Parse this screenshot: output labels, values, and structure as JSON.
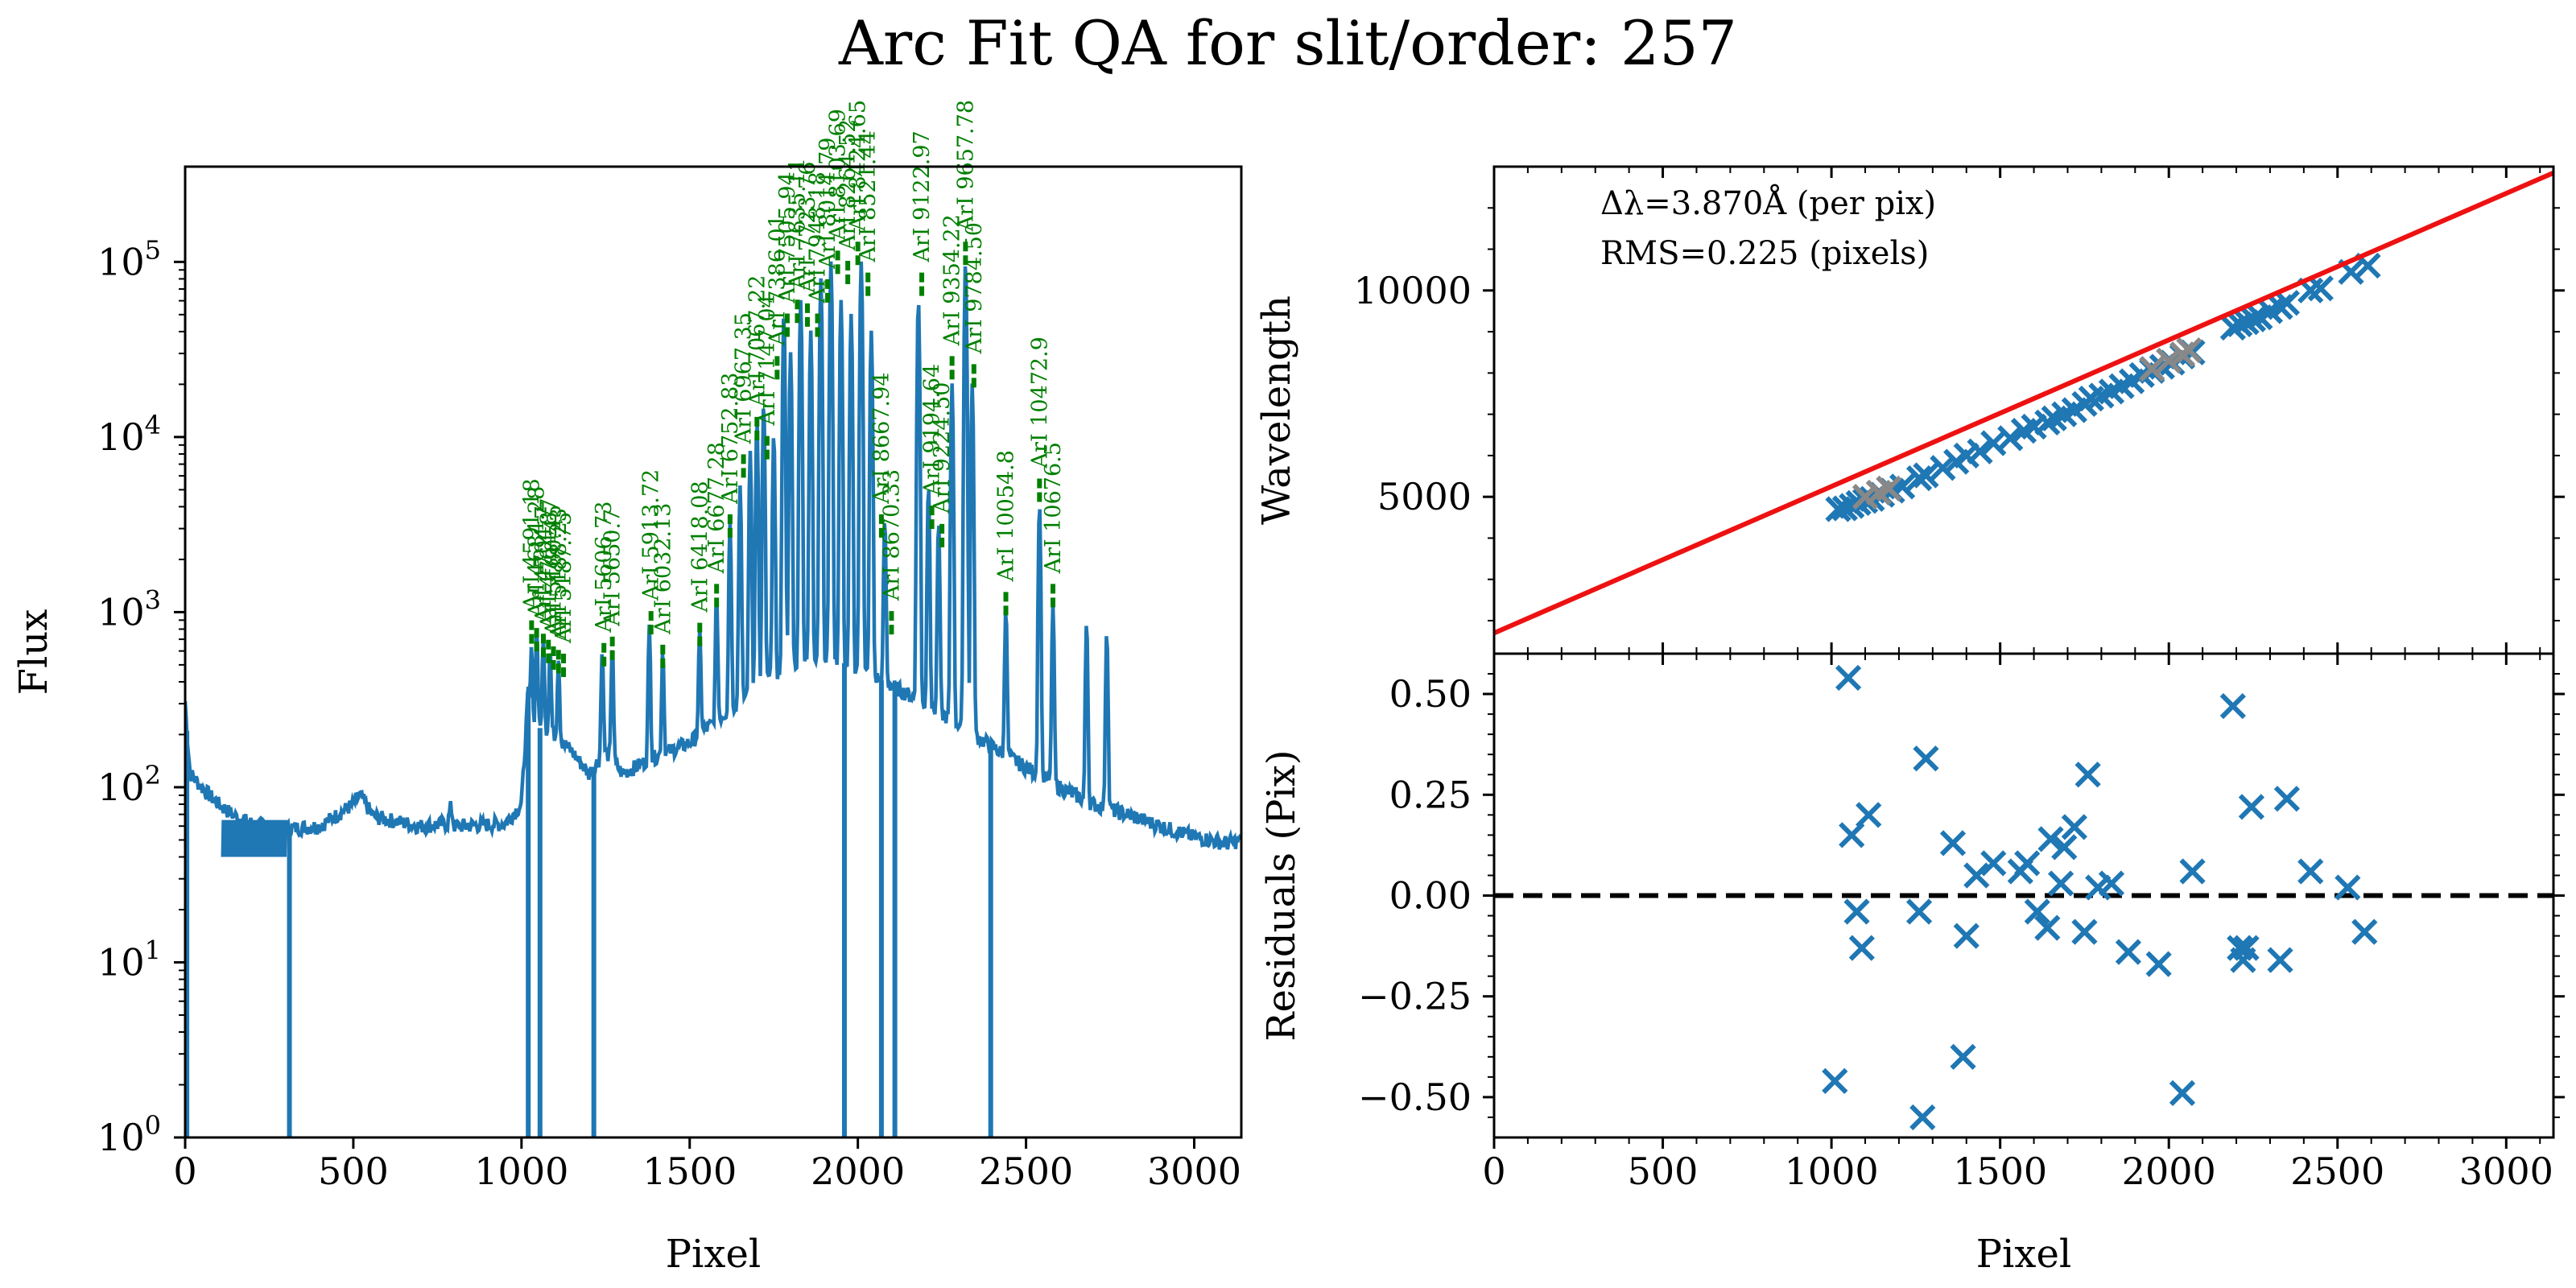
{
  "figure": {
    "title": "Arc Fit QA for slit/order: 257"
  },
  "chart_data": [
    {
      "type": "line",
      "name": "arc-spectrum",
      "xlabel": "Pixel",
      "ylabel": "Flux",
      "xlim": [
        0,
        3140
      ],
      "ylim": [
        1,
        350000
      ],
      "yscale": "log",
      "xticks": [
        0,
        500,
        1000,
        1500,
        2000,
        2500,
        3000
      ],
      "yticks": [
        {
          "value": 1,
          "mant": "10",
          "exp": "0"
        },
        {
          "value": 10,
          "mant": "10",
          "exp": "1"
        },
        {
          "value": 100,
          "mant": "10",
          "exp": "2"
        },
        {
          "value": 1000,
          "mant": "10",
          "exp": "3"
        },
        {
          "value": 10000,
          "mant": "10",
          "exp": "4"
        },
        {
          "value": 100000,
          "mant": "10",
          "exp": "5"
        }
      ],
      "series_color": "#1f77b4",
      "label_color": "#008000",
      "continuum": [
        [
          0,
          310
        ],
        [
          5,
          210
        ],
        [
          15,
          120
        ],
        [
          60,
          95
        ],
        [
          100,
          80
        ],
        [
          150,
          68
        ],
        [
          200,
          62
        ],
        [
          300,
          58
        ],
        [
          400,
          60
        ],
        [
          500,
          80
        ],
        [
          520,
          90
        ],
        [
          560,
          68
        ],
        [
          700,
          60
        ],
        [
          780,
          62
        ],
        [
          790,
          78
        ],
        [
          800,
          60
        ],
        [
          950,
          62
        ],
        [
          1000,
          80
        ],
        [
          1020,
          350
        ],
        [
          1030,
          180
        ],
        [
          1050,
          220
        ],
        [
          1100,
          200
        ],
        [
          1150,
          160
        ],
        [
          1200,
          120
        ],
        [
          1250,
          160
        ],
        [
          1300,
          120
        ],
        [
          1400,
          150
        ],
        [
          1500,
          180
        ],
        [
          1600,
          260
        ],
        [
          1700,
          380
        ],
        [
          1800,
          500
        ],
        [
          1900,
          560
        ],
        [
          2000,
          480
        ],
        [
          2100,
          380
        ],
        [
          2200,
          300
        ],
        [
          2300,
          230
        ],
        [
          2400,
          170
        ],
        [
          2500,
          130
        ],
        [
          2600,
          100
        ],
        [
          2700,
          80
        ],
        [
          2800,
          70
        ],
        [
          2900,
          60
        ],
        [
          3000,
          52
        ],
        [
          3100,
          48
        ],
        [
          3140,
          50
        ]
      ],
      "noise_band": {
        "x": [
          110,
          300
        ],
        "low": 40,
        "high": 65
      },
      "emission_peaks": [
        {
          "x": 1030,
          "peak": 450
        },
        {
          "x": 1045,
          "peak": 600
        },
        {
          "x": 1065,
          "peak": 500
        },
        {
          "x": 1085,
          "peak": 400
        },
        {
          "x": 1110,
          "peak": 350
        },
        {
          "x": 1240,
          "peak": 450
        },
        {
          "x": 1270,
          "peak": 500
        },
        {
          "x": 1380,
          "peak": 700
        },
        {
          "x": 1420,
          "peak": 450
        },
        {
          "x": 1530,
          "peak": 600
        },
        {
          "x": 1580,
          "peak": 1000
        },
        {
          "x": 1620,
          "peak": 3000
        },
        {
          "x": 1650,
          "peak": 5000
        },
        {
          "x": 1680,
          "peak": 8000
        },
        {
          "x": 1700,
          "peak": 12000
        },
        {
          "x": 1720,
          "peak": 15000
        },
        {
          "x": 1750,
          "peak": 10000
        },
        {
          "x": 1780,
          "peak": 50000
        },
        {
          "x": 1800,
          "peak": 30000
        },
        {
          "x": 1830,
          "peak": 60000
        },
        {
          "x": 1860,
          "peak": 40000
        },
        {
          "x": 1890,
          "peak": 80000
        },
        {
          "x": 1920,
          "peak": 100000
        },
        {
          "x": 1950,
          "peak": 60000
        },
        {
          "x": 1980,
          "peak": 50000
        },
        {
          "x": 2010,
          "peak": 100000
        },
        {
          "x": 2040,
          "peak": 40000
        },
        {
          "x": 2080,
          "peak": 3000
        },
        {
          "x": 2180,
          "peak": 60000
        },
        {
          "x": 2210,
          "peak": 5000
        },
        {
          "x": 2240,
          "peak": 3000
        },
        {
          "x": 2280,
          "peak": 20000
        },
        {
          "x": 2320,
          "peak": 100000
        },
        {
          "x": 2340,
          "peak": 20000
        },
        {
          "x": 2440,
          "peak": 900
        },
        {
          "x": 2540,
          "peak": 4000
        },
        {
          "x": 2580,
          "peak": 1000
        },
        {
          "x": 2680,
          "peak": 800
        },
        {
          "x": 2740,
          "peak": 700
        }
      ],
      "absorption_dips": [
        {
          "x": 5
        },
        {
          "x": 310
        },
        {
          "x": 1020
        },
        {
          "x": 1055
        },
        {
          "x": 1215
        },
        {
          "x": 1960
        },
        {
          "x": 2070
        },
        {
          "x": 2110
        },
        {
          "x": 2395
        }
      ],
      "line_ids": [
        {
          "x": 1030,
          "y": 620,
          "label": "ArI 4591.18"
        },
        {
          "x": 1045,
          "y": 560,
          "label": "ArI 4684.28"
        },
        {
          "x": 1065,
          "y": 520,
          "label": "ArI 4704.7"
        },
        {
          "x": 1080,
          "y": 480,
          "label": "ArI 4764.87"
        },
        {
          "x": 1095,
          "y": 440,
          "label": "ArI 5160.45"
        },
        {
          "x": 1110,
          "y": 420,
          "label": "ArI 5188.23"
        },
        {
          "x": 1125,
          "y": 400,
          "label": "ArI 5187.75"
        },
        {
          "x": 1245,
          "y": 460,
          "label": "ArI 5606.73"
        },
        {
          "x": 1270,
          "y": 500,
          "label": "ArI 5650.7"
        },
        {
          "x": 1385,
          "y": 700,
          "label": "ArI 5913.72"
        },
        {
          "x": 1420,
          "y": 450,
          "label": "ArI 6032.13"
        },
        {
          "x": 1530,
          "y": 600,
          "label": "ArI 6418.08"
        },
        {
          "x": 1580,
          "y": 1000,
          "label": "ArI 6677.28"
        },
        {
          "x": 1620,
          "y": 2500,
          "label": "ArI 6752.83"
        },
        {
          "x": 1660,
          "y": 5500,
          "label": "ArI 6967.35"
        },
        {
          "x": 1700,
          "y": 9000,
          "label": "ArI 7067.22"
        },
        {
          "x": 1730,
          "y": 7000,
          "label": "ArI 7147.04"
        },
        {
          "x": 1760,
          "y": 20000,
          "label": "ArI 7386.01"
        },
        {
          "x": 1790,
          "y": 35000,
          "label": "ArI 7505.94"
        },
        {
          "x": 1820,
          "y": 42000,
          "label": "ArI 7635.11"
        },
        {
          "x": 1850,
          "y": 40000,
          "label": "ArI 7723.76"
        },
        {
          "x": 1880,
          "y": 35000,
          "label": "ArI 7948.18"
        },
        {
          "x": 1910,
          "y": 55000,
          "label": "ArI 8014.79"
        },
        {
          "x": 1940,
          "y": 80000,
          "label": "ArI 8103.69"
        },
        {
          "x": 1970,
          "y": 70000,
          "label": "ArI 8264.52"
        },
        {
          "x": 2000,
          "y": 90000,
          "label": "ArI 8424.65"
        },
        {
          "x": 2030,
          "y": 60000,
          "label": "ArI 8521.44"
        },
        {
          "x": 2070,
          "y": 2500,
          "label": "ArI 8667.94"
        },
        {
          "x": 2100,
          "y": 700,
          "label": "ArI 8670.33"
        },
        {
          "x": 2190,
          "y": 60000,
          "label": "ArI 9122.97"
        },
        {
          "x": 2220,
          "y": 2800,
          "label": "ArI 9194.64"
        },
        {
          "x": 2250,
          "y": 2200,
          "label": "ArI 9224.50"
        },
        {
          "x": 2280,
          "y": 20000,
          "label": "ArI 9354.22"
        },
        {
          "x": 2320,
          "y": 90000,
          "label": "ArI 9657.78"
        },
        {
          "x": 2345,
          "y": 18000,
          "label": "ArI 9784.50"
        },
        {
          "x": 2440,
          "y": 900,
          "label": "ArI 10054.8"
        },
        {
          "x": 2540,
          "y": 4000,
          "label": "ArI 10472.9"
        },
        {
          "x": 2580,
          "y": 1000,
          "label": "ArI 10676.5"
        }
      ]
    },
    {
      "type": "scatter",
      "name": "wavelength-fit",
      "xlabel": "",
      "ylabel": "Wavelength",
      "xlim": [
        0,
        3140
      ],
      "ylim": [
        1200,
        13000
      ],
      "xticks": [
        0,
        500,
        1000,
        1500,
        2000,
        2500,
        3000
      ],
      "yticks": [
        5000,
        10000
      ],
      "minor_yticks": [
        2000,
        3000,
        4000,
        6000,
        7000,
        8000,
        9000,
        11000,
        12000
      ],
      "annotations": [
        "Δλ=3.870Å (per pix)",
        "RMS=0.225 (pixels)"
      ],
      "fit_line": {
        "x": [
          0,
          3140
        ],
        "y": [
          1700,
          12850
        ],
        "color": "#ee1111"
      },
      "marker_color": "#1f77b4",
      "rejected_color": "#888888",
      "points": [
        [
          1020,
          4700
        ],
        [
          1040,
          4720
        ],
        [
          1060,
          4780
        ],
        [
          1080,
          4850
        ],
        [
          1100,
          4900
        ],
        [
          1120,
          4950
        ],
        [
          1150,
          5050
        ],
        [
          1180,
          5150
        ],
        [
          1210,
          5250
        ],
        [
          1260,
          5450
        ],
        [
          1280,
          5520
        ],
        [
          1330,
          5700
        ],
        [
          1370,
          5850
        ],
        [
          1400,
          6000
        ],
        [
          1440,
          6100
        ],
        [
          1480,
          6300
        ],
        [
          1530,
          6420
        ],
        [
          1570,
          6600
        ],
        [
          1600,
          6700
        ],
        [
          1640,
          6800
        ],
        [
          1660,
          6900
        ],
        [
          1690,
          7000
        ],
        [
          1720,
          7100
        ],
        [
          1750,
          7250
        ],
        [
          1770,
          7380
        ],
        [
          1800,
          7450
        ],
        [
          1830,
          7550
        ],
        [
          1860,
          7680
        ],
        [
          1890,
          7800
        ],
        [
          1920,
          7950
        ],
        [
          1950,
          8050
        ],
        [
          1980,
          8150
        ],
        [
          2010,
          8250
        ],
        [
          2040,
          8400
        ],
        [
          2070,
          8500
        ],
        [
          2190,
          9100
        ],
        [
          2210,
          9180
        ],
        [
          2230,
          9230
        ],
        [
          2250,
          9300
        ],
        [
          2270,
          9350
        ],
        [
          2300,
          9500
        ],
        [
          2330,
          9600
        ],
        [
          2350,
          9700
        ],
        [
          2420,
          10000
        ],
        [
          2450,
          10050
        ],
        [
          2540,
          10450
        ],
        [
          2590,
          10600
        ]
      ],
      "rejected": [
        [
          1100,
          5000
        ],
        [
          1140,
          5100
        ],
        [
          1170,
          5200
        ],
        [
          1950,
          8100
        ],
        [
          2000,
          8300
        ],
        [
          2040,
          8450
        ],
        [
          2060,
          8550
        ]
      ]
    },
    {
      "type": "scatter",
      "name": "fit-residuals",
      "xlabel": "Pixel",
      "ylabel": "Residuals (Pix)",
      "xlim": [
        0,
        3140
      ],
      "ylim": [
        -0.6,
        0.6
      ],
      "xticks": [
        0,
        500,
        1000,
        1500,
        2000,
        2500,
        3000
      ],
      "yticks": [
        -0.5,
        -0.25,
        0,
        0.25,
        0.5
      ],
      "ytick_labels": [
        "−0.50",
        "−0.25",
        "0.00",
        "0.25",
        "0.50"
      ],
      "zero_line": 0,
      "marker_color": "#1f77b4",
      "points": [
        [
          1010,
          -0.46
        ],
        [
          1050,
          0.54
        ],
        [
          1060,
          0.15
        ],
        [
          1075,
          -0.04
        ],
        [
          1090,
          -0.13
        ],
        [
          1110,
          0.2
        ],
        [
          1260,
          -0.04
        ],
        [
          1280,
          0.34
        ],
        [
          1270,
          -0.55
        ],
        [
          1360,
          0.13
        ],
        [
          1390,
          -0.4
        ],
        [
          1400,
          -0.1
        ],
        [
          1430,
          0.05
        ],
        [
          1480,
          0.08
        ],
        [
          1560,
          0.06
        ],
        [
          1580,
          0.08
        ],
        [
          1610,
          -0.04
        ],
        [
          1640,
          -0.08
        ],
        [
          1650,
          0.14
        ],
        [
          1680,
          0.03
        ],
        [
          1690,
          0.12
        ],
        [
          1720,
          0.17
        ],
        [
          1750,
          -0.09
        ],
        [
          1760,
          0.3
        ],
        [
          1790,
          0.02
        ],
        [
          1830,
          0.03
        ],
        [
          1880,
          -0.14
        ],
        [
          1970,
          -0.17
        ],
        [
          2040,
          -0.49
        ],
        [
          2070,
          0.06
        ],
        [
          2190,
          0.47
        ],
        [
          2210,
          -0.13
        ],
        [
          2220,
          -0.16
        ],
        [
          2230,
          -0.13
        ],
        [
          2245,
          0.22
        ],
        [
          2330,
          -0.16
        ],
        [
          2350,
          0.24
        ],
        [
          2420,
          0.06
        ],
        [
          2530,
          0.02
        ],
        [
          2580,
          -0.09
        ]
      ]
    }
  ]
}
